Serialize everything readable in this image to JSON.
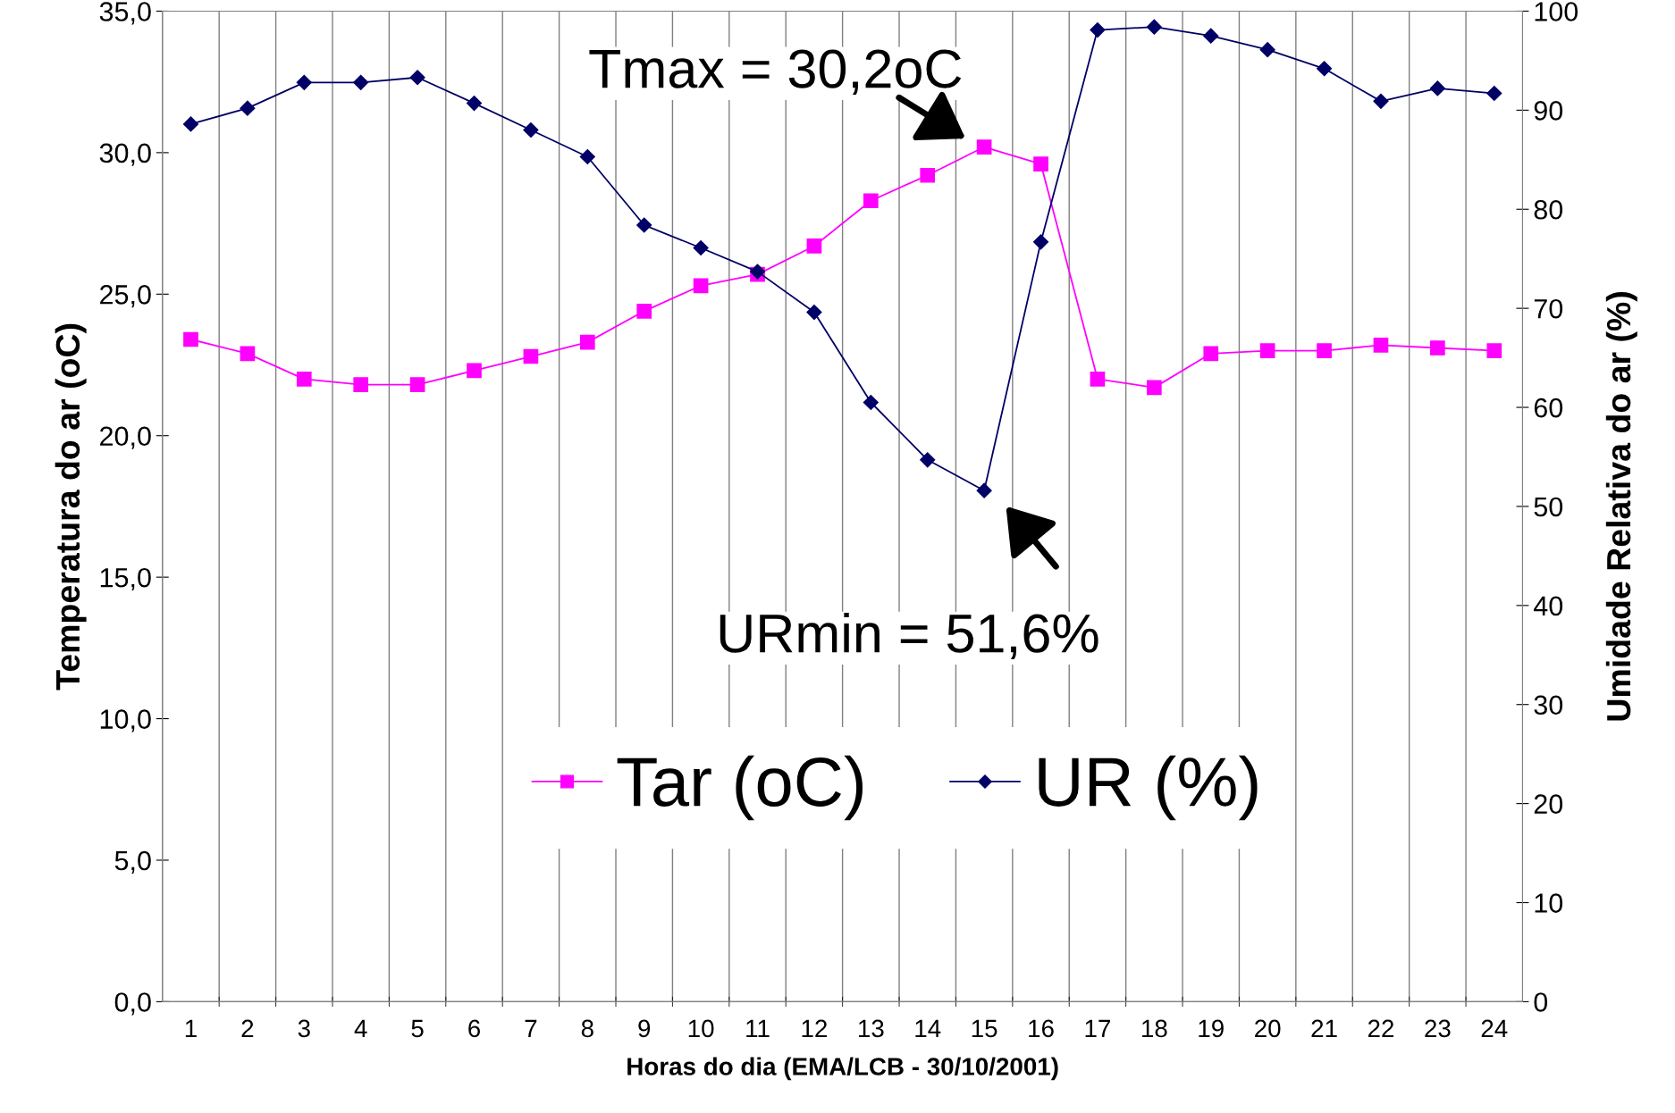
{
  "chart_data": {
    "type": "line",
    "xlabel": "Horas do dia (EMA/LCB - 30/10/2001)",
    "ylabel": "Temperatura do ar (oC)",
    "y2label": "Umidade Relativa do ar (%)",
    "categories": [
      "1",
      "2",
      "3",
      "4",
      "5",
      "6",
      "7",
      "8",
      "9",
      "10",
      "11",
      "12",
      "13",
      "14",
      "15",
      "16",
      "17",
      "18",
      "19",
      "20",
      "21",
      "22",
      "23",
      "24"
    ],
    "series": [
      {
        "name": "Tar (oC)",
        "color": "#ff00ff",
        "marker": "square",
        "values": [
          23.4,
          22.9,
          22.0,
          21.8,
          21.8,
          22.3,
          22.8,
          23.3,
          24.4,
          25.3,
          25.7,
          26.7,
          28.3,
          29.2,
          30.2,
          29.6,
          22.0,
          21.7,
          22.9,
          23.0,
          23.0,
          23.2,
          23.1,
          23.0
        ]
      },
      {
        "name": "UR (%)",
        "color": "#000066",
        "marker": "diamond",
        "axis": "y2",
        "values": [
          88.6,
          90.2,
          92.8,
          92.8,
          93.3,
          90.7,
          88.0,
          85.3,
          78.4,
          76.1,
          73.7,
          69.6,
          60.5,
          54.7,
          51.6,
          76.7,
          98.1,
          98.4,
          97.5,
          96.1,
          94.2,
          90.9,
          92.2,
          91.7
        ]
      }
    ],
    "ylim": [
      0,
      35
    ],
    "yticks": [
      {
        "value": 0,
        "label": "0,0"
      },
      {
        "value": 5,
        "label": "5,0"
      },
      {
        "value": 10,
        "label": "10,0"
      },
      {
        "value": 15,
        "label": "15,0"
      },
      {
        "value": 20,
        "label": "20,0"
      },
      {
        "value": 25,
        "label": "25,0"
      },
      {
        "value": 30,
        "label": "30,0"
      },
      {
        "value": 35,
        "label": "35,0"
      }
    ],
    "y2lim": [
      0,
      100
    ],
    "y2ticks": [
      0,
      10,
      20,
      30,
      40,
      50,
      60,
      70,
      80,
      90,
      100
    ],
    "annotations": [
      "Tmax = 30,2oC",
      "URmin = 51,6%"
    ],
    "grid": "x",
    "legend": "bottom",
    "line_style": "solid"
  }
}
